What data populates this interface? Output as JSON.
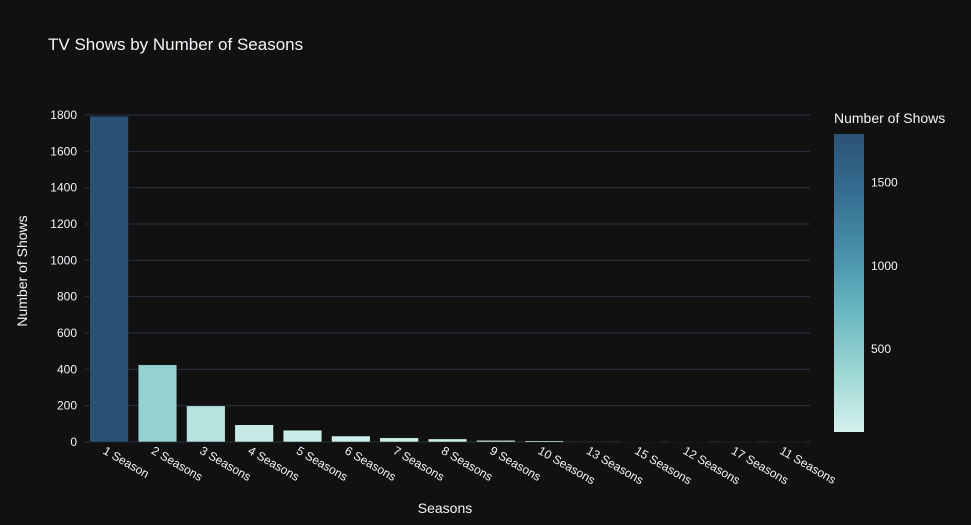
{
  "chart_data": {
    "type": "bar",
    "title": "TV Shows by Number of Seasons",
    "xlabel": "Seasons",
    "ylabel": "Number of Shows",
    "categories": [
      "1 Season",
      "2 Seasons",
      "3 Seasons",
      "4 Seasons",
      "5 Seasons",
      "6 Seasons",
      "7 Seasons",
      "8 Seasons",
      "9 Seasons",
      "10 Seasons",
      "13 Seasons",
      "15 Seasons",
      "12 Seasons",
      "17 Seasons",
      "11 Seasons"
    ],
    "values": [
      1793,
      425,
      199,
      95,
      65,
      33,
      23,
      17,
      9,
      7,
      3,
      2,
      2,
      1,
      1
    ],
    "ylim": [
      0,
      1800
    ],
    "yticks": [
      0,
      200,
      400,
      600,
      800,
      1000,
      1200,
      1400,
      1600,
      1800
    ],
    "grid": true,
    "colorbar": {
      "title": "Number of Shows",
      "ticks": [
        500,
        1000,
        1500
      ],
      "range": [
        1,
        1793
      ],
      "colorscale": [
        "#d4f0ed",
        "#9dd8d4",
        "#6bb8c2",
        "#4891aa",
        "#356e91",
        "#2a5274"
      ]
    },
    "legend": "colorbar-right"
  }
}
